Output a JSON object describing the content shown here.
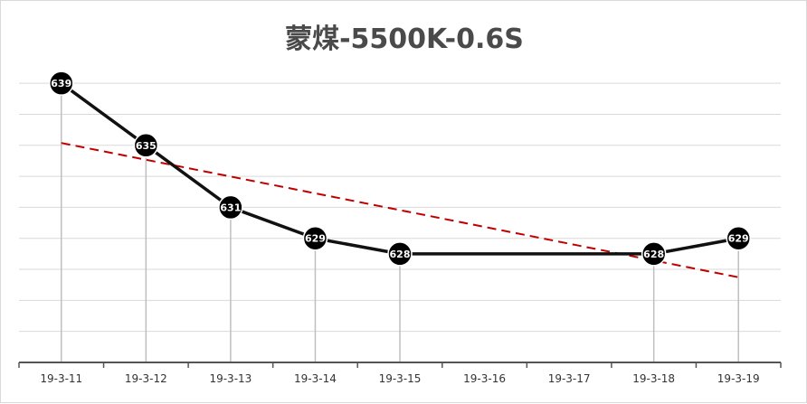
{
  "chart_data": {
    "type": "line",
    "title": "蒙煤-5500K-0.6S",
    "xlabel": "",
    "ylabel": "",
    "categories": [
      "19-3-11",
      "19-3-12",
      "19-3-13",
      "19-3-14",
      "19-3-15",
      "19-3-16",
      "19-3-17",
      "19-3-18",
      "19-3-19"
    ],
    "series": [
      {
        "values": [
          639,
          635,
          631,
          629,
          628,
          null,
          null,
          628,
          629
        ]
      }
    ],
    "data_labels": [
      "639",
      "635",
      "631",
      "629",
      "628",
      "",
      "",
      "628",
      "629"
    ],
    "trendline": {
      "style": "linear",
      "dashed": true
    },
    "ylim": [
      621,
      640
    ],
    "grid": true,
    "y_tick_labels_shown": false,
    "colors": {
      "line": "#111111",
      "marker": "#000000",
      "trend": "#c00000",
      "grid": "#d9d9d9"
    }
  }
}
